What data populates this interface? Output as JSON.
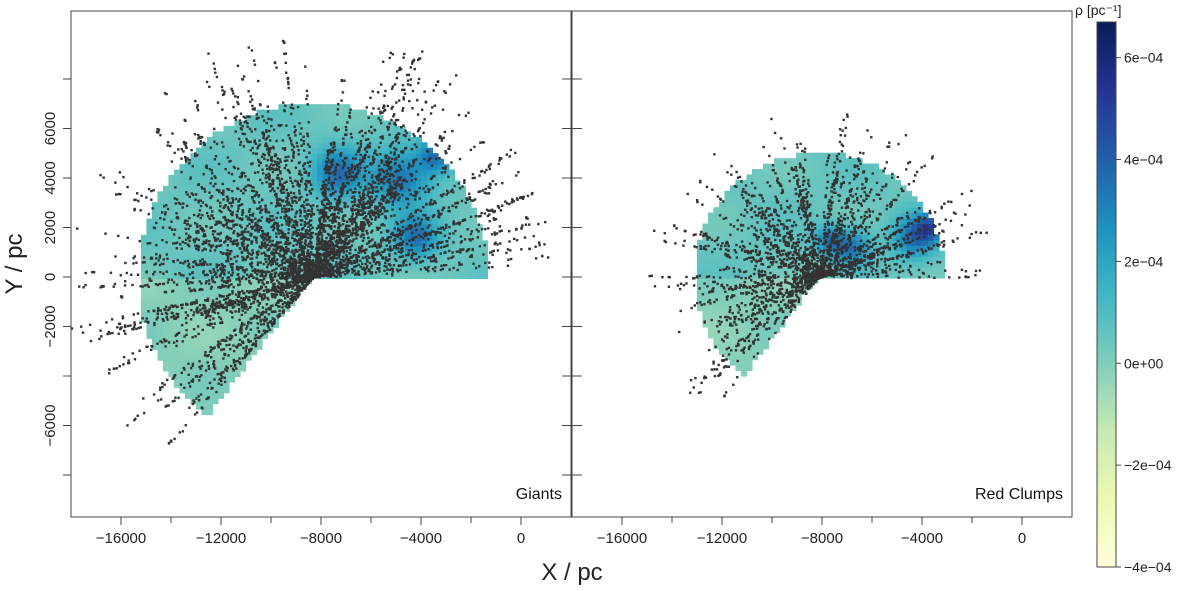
{
  "chart_data": {
    "type": "scatter",
    "xlabel": "X / pc",
    "ylabel": "Y / pc",
    "xlim": [
      -18000,
      2200
    ],
    "ylim": [
      -9500,
      10500
    ],
    "x_ticks": [
      -16000,
      -12000,
      -8000,
      -4000,
      0
    ],
    "x_tick_labels": [
      "−16000",
      "−12000",
      "−8000",
      "−4000",
      "0"
    ],
    "y_ticks": [
      6000,
      2000,
      -2000,
      -6000
    ],
    "y_tick_labels": [
      "6000",
      "2000",
      "−2000",
      "−6000"
    ],
    "y_minor_ticks": [
      8000,
      4000,
      0,
      -4000,
      -8000
    ],
    "y_minor_tick_labels": [
      "",
      "4000",
      "0",
      "",
      ""
    ],
    "grid": false,
    "panels": [
      {
        "label": "Giants",
        "center": [
          -8300,
          0
        ],
        "radius": 7000,
        "angle_range_deg": [
          0,
          233
        ],
        "points_color": "#333333"
      },
      {
        "label": "Red Clumps",
        "center": [
          -8100,
          0
        ],
        "radius": 5000,
        "angle_range_deg": [
          0,
          233
        ],
        "points_color": "#333333"
      }
    ],
    "colorbar": {
      "title": "ρ [pc⁻¹]",
      "range": [
        -0.0004,
        0.00067
      ],
      "ticks": [
        0.0006,
        0.0004,
        0.0002,
        0.0,
        -0.0002,
        -0.0004
      ],
      "tick_labels": [
        "6e−04",
        "4e−04",
        "2e−04",
        "0e+00",
        "−2e−04",
        "−4e−04"
      ],
      "colors": [
        "#ffffd9",
        "#edf8b1",
        "#c7e9b4",
        "#7fcdbb",
        "#41b6c4",
        "#1d91c0",
        "#225ea8",
        "#253494",
        "#081d58"
      ]
    }
  }
}
